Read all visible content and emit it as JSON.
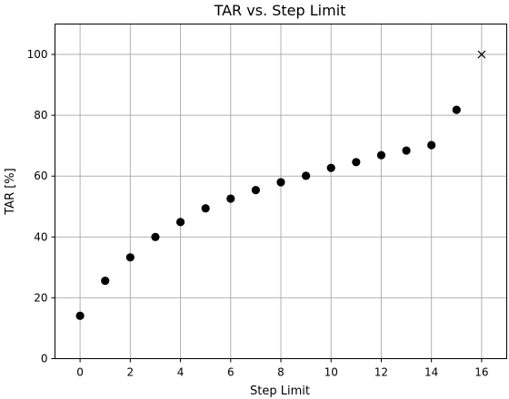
{
  "chart_data": {
    "type": "scatter",
    "title": "TAR vs. Step Limit",
    "xlabel": "Step Limit",
    "ylabel": "TAR [%]",
    "xlim": [
      -1,
      17
    ],
    "ylim": [
      0,
      110
    ],
    "xticks": [
      0,
      2,
      4,
      6,
      8,
      10,
      12,
      14,
      16
    ],
    "yticks": [
      0,
      20,
      40,
      60,
      80,
      100
    ],
    "grid": true,
    "series": [
      {
        "marker": "circle",
        "color": "#000000",
        "x": [
          0,
          1,
          2,
          3,
          4,
          5,
          6,
          7,
          8,
          9,
          10,
          11,
          12,
          13,
          14,
          15
        ],
        "y": [
          14.1,
          25.6,
          33.3,
          40.0,
          44.9,
          49.4,
          52.6,
          55.4,
          58.0,
          60.1,
          62.7,
          64.6,
          66.9,
          68.4,
          70.2,
          81.8
        ]
      },
      {
        "marker": "x",
        "color": "#000000",
        "x": [
          16
        ],
        "y": [
          100
        ]
      }
    ]
  }
}
